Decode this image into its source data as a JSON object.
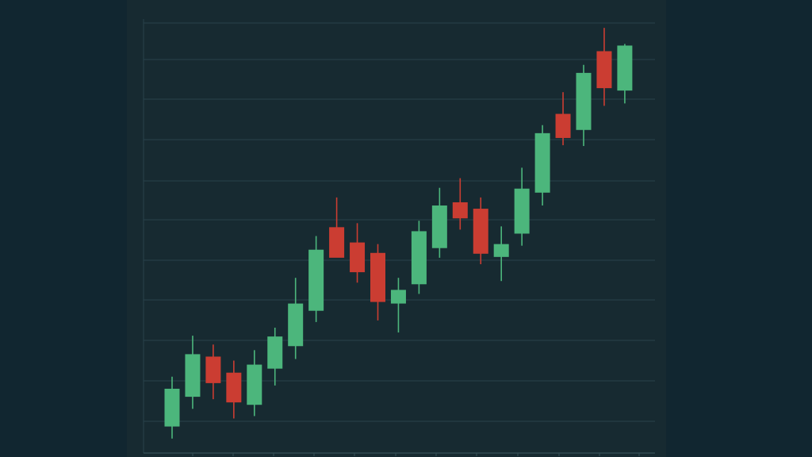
{
  "chart_data": {
    "type": "candlestick",
    "title": "",
    "xlabel": "",
    "ylabel": "",
    "y_axis_labels_shown": false,
    "x_axis_labels_shown": false,
    "grid": "horizontal",
    "ylim": [
      0,
      54
    ],
    "candles": [
      {
        "open": 3.3,
        "high": 9.5,
        "low": 1.8,
        "close": 8.0
      },
      {
        "open": 7.0,
        "high": 14.6,
        "low": 5.5,
        "close": 12.3
      },
      {
        "open": 12.0,
        "high": 13.5,
        "low": 6.7,
        "close": 8.7
      },
      {
        "open": 10.0,
        "high": 11.5,
        "low": 4.3,
        "close": 6.3
      },
      {
        "open": 6.0,
        "high": 12.8,
        "low": 4.6,
        "close": 11.0
      },
      {
        "open": 10.5,
        "high": 15.6,
        "low": 8.4,
        "close": 14.5
      },
      {
        "open": 13.3,
        "high": 21.8,
        "low": 11.7,
        "close": 18.6
      },
      {
        "open": 17.7,
        "high": 27.0,
        "low": 16.3,
        "close": 25.3
      },
      {
        "open": 28.1,
        "high": 31.8,
        "low": 24.5,
        "close": 24.3
      },
      {
        "open": 26.2,
        "high": 28.6,
        "low": 21.2,
        "close": 22.5
      },
      {
        "open": 24.9,
        "high": 26.0,
        "low": 16.5,
        "close": 18.8
      },
      {
        "open": 18.6,
        "high": 21.8,
        "low": 15.0,
        "close": 20.3
      },
      {
        "open": 21.0,
        "high": 28.9,
        "low": 19.8,
        "close": 27.6
      },
      {
        "open": 25.5,
        "high": 33.0,
        "low": 24.3,
        "close": 30.8
      },
      {
        "open": 31.2,
        "high": 34.2,
        "low": 27.8,
        "close": 29.2
      },
      {
        "open": 30.4,
        "high": 31.8,
        "low": 23.5,
        "close": 24.8
      },
      {
        "open": 24.4,
        "high": 28.2,
        "low": 21.4,
        "close": 26.0
      },
      {
        "open": 27.3,
        "high": 35.5,
        "low": 25.8,
        "close": 32.9
      },
      {
        "open": 32.4,
        "high": 40.8,
        "low": 30.8,
        "close": 39.8
      },
      {
        "open": 42.2,
        "high": 44.9,
        "low": 38.3,
        "close": 39.2
      },
      {
        "open": 40.2,
        "high": 48.3,
        "low": 38.2,
        "close": 47.3
      },
      {
        "open": 50.0,
        "high": 52.9,
        "low": 43.2,
        "close": 45.4
      },
      {
        "open": 45.1,
        "high": 50.9,
        "low": 43.5,
        "close": 50.7
      }
    ],
    "colors": {
      "up": "#4cb67c",
      "down": "#cb3d32",
      "grid": "#28424b",
      "axis": "#355058",
      "background": "#172a31",
      "page_background": "#112630"
    }
  }
}
